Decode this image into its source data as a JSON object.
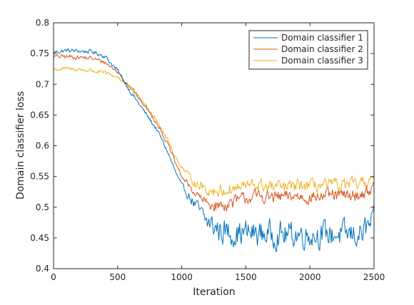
{
  "chart_data": {
    "type": "line",
    "title": "",
    "xlabel": "Iteration",
    "ylabel": "Domain classifier loss",
    "xlim": [
      0,
      2500
    ],
    "ylim": [
      0.4,
      0.8
    ],
    "xticks": [
      0,
      500,
      1000,
      1500,
      2000,
      2500
    ],
    "yticks": [
      0.4,
      0.45,
      0.5,
      0.55,
      0.6,
      0.65,
      0.7,
      0.75,
      0.8
    ],
    "xtick_labels": [
      "0",
      "500",
      "1000",
      "1500",
      "2000",
      "2500"
    ],
    "ytick_labels": [
      "0.4",
      "0.45",
      "0.5",
      "0.55",
      "0.6",
      "0.65",
      "0.7",
      "0.75",
      "0.8"
    ],
    "grid": false,
    "legend_position": "top-right",
    "x": [
      0,
      100,
      200,
      300,
      400,
      500,
      600,
      700,
      800,
      850,
      900,
      950,
      1000,
      1100,
      1200,
      1300,
      1400,
      1500,
      1600,
      1700,
      1800,
      1900,
      2000,
      2100,
      2200,
      2300,
      2400,
      2500
    ],
    "series": [
      {
        "name": "Domain classifier 1",
        "color": "#0072bd",
        "values": [
          0.752,
          0.755,
          0.754,
          0.753,
          0.746,
          0.722,
          0.688,
          0.658,
          0.628,
          0.608,
          0.585,
          0.558,
          0.535,
          0.505,
          0.475,
          0.462,
          0.458,
          0.458,
          0.457,
          0.456,
          0.455,
          0.456,
          0.456,
          0.456,
          0.456,
          0.455,
          0.456,
          0.478
        ]
      },
      {
        "name": "Domain classifier 2",
        "color": "#d95319",
        "values": [
          0.745,
          0.745,
          0.744,
          0.742,
          0.736,
          0.72,
          0.695,
          0.668,
          0.64,
          0.62,
          0.598,
          0.572,
          0.55,
          0.523,
          0.505,
          0.502,
          0.508,
          0.515,
          0.518,
          0.516,
          0.516,
          0.518,
          0.516,
          0.518,
          0.519,
          0.518,
          0.52,
          0.534
        ]
      },
      {
        "name": "Domain classifier 3",
        "color": "#edb120",
        "values": [
          0.724,
          0.725,
          0.724,
          0.722,
          0.718,
          0.712,
          0.695,
          0.67,
          0.645,
          0.625,
          0.605,
          0.582,
          0.565,
          0.54,
          0.528,
          0.526,
          0.53,
          0.535,
          0.535,
          0.533,
          0.532,
          0.535,
          0.535,
          0.535,
          0.536,
          0.536,
          0.537,
          0.548
        ]
      }
    ]
  }
}
